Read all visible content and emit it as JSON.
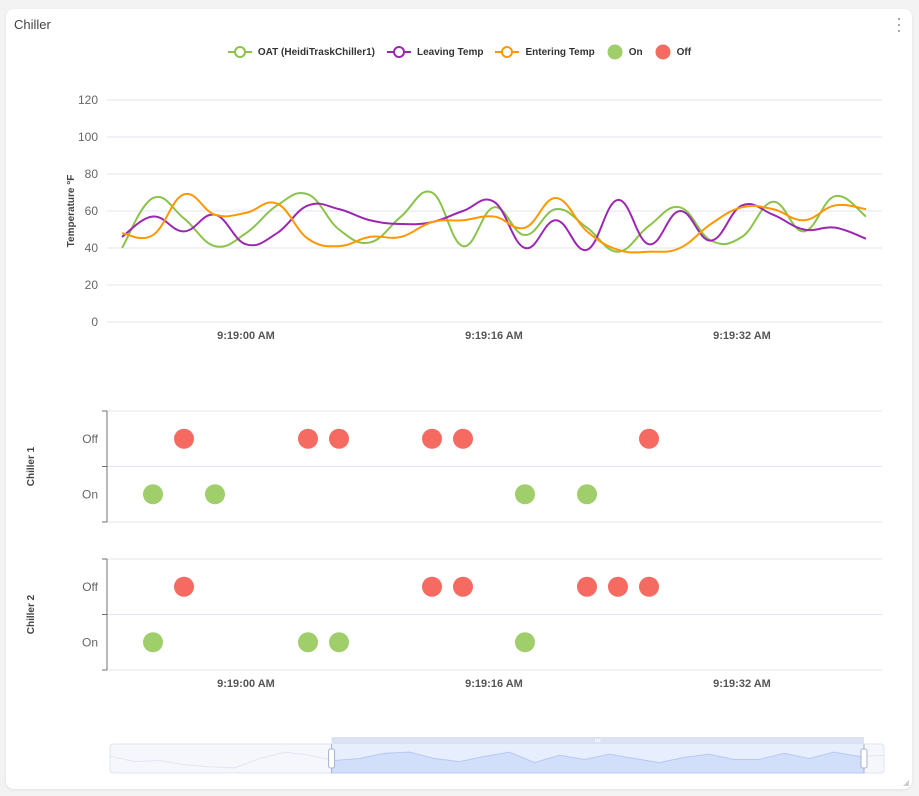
{
  "card": {
    "title": "Chiller",
    "menu_icon": "more-vertical-icon"
  },
  "colors": {
    "oat": "#8bc34a",
    "leaving": "#9c27b0",
    "entering": "#ff9800",
    "on": "#a0ce6b",
    "off": "#f56b61",
    "grid": "#e3e6f0"
  },
  "legend": [
    {
      "label": "OAT (HeidiTraskChiller1)",
      "type": "line",
      "color_key": "oat"
    },
    {
      "label": "Leaving Temp",
      "type": "line",
      "color_key": "leaving"
    },
    {
      "label": "Entering Temp",
      "type": "line",
      "color_key": "entering"
    },
    {
      "label": "On",
      "type": "dot",
      "color_key": "on"
    },
    {
      "label": "Off",
      "type": "dot",
      "color_key": "off"
    }
  ],
  "chart_data": [
    {
      "type": "line",
      "title": "",
      "xlabel": "",
      "ylabel": "Temperature °F",
      "ylim": [
        0,
        120
      ],
      "yticks": [
        0,
        20,
        40,
        60,
        80,
        100,
        120
      ],
      "x_unit": "seconds relative to 9:19:00 AM",
      "x": [
        -8,
        -6,
        -4,
        -2,
        0,
        2,
        4,
        6,
        8,
        10,
        12,
        14,
        16,
        18,
        20,
        22,
        24,
        26,
        28,
        30,
        32,
        34,
        36,
        38,
        40
      ],
      "xlim": [
        -8,
        40
      ],
      "xticks": [
        {
          "value": 0,
          "label": "9:19:00 AM"
        },
        {
          "value": 16,
          "label": "9:19:16 AM"
        },
        {
          "value": 32,
          "label": "9:19:32 AM"
        }
      ],
      "grid": true,
      "legend_position": "top",
      "series": [
        {
          "name": "OAT (HeidiTraskChiller1)",
          "color_key": "oat",
          "values": [
            40,
            67,
            56,
            41,
            48,
            63,
            69,
            50,
            43,
            57,
            70,
            41,
            62,
            47,
            61,
            51,
            38,
            52,
            62,
            44,
            46,
            65,
            49,
            68,
            57
          ]
        },
        {
          "name": "Leaving Temp",
          "color_key": "leaving",
          "values": [
            46,
            57,
            49,
            58,
            42,
            48,
            63,
            61,
            55,
            53,
            54,
            60,
            65,
            40,
            55,
            39,
            66,
            42,
            60,
            44,
            63,
            58,
            50,
            51,
            45
          ]
        },
        {
          "name": "Entering Temp",
          "color_key": "entering",
          "values": [
            48,
            47,
            69,
            58,
            59,
            64,
            45,
            41,
            46,
            46,
            54,
            55,
            57,
            51,
            67,
            49,
            39,
            38,
            40,
            53,
            62,
            61,
            55,
            63,
            61
          ]
        }
      ]
    },
    {
      "type": "scatter",
      "title": "",
      "ylabel": "Chiller 1",
      "categories": [
        "On",
        "Off"
      ],
      "x_unit": "seconds relative to 9:19:00 AM",
      "xlim": [
        -8,
        40
      ],
      "grid": true,
      "points": [
        {
          "x": -6,
          "state": "On"
        },
        {
          "x": -4,
          "state": "Off"
        },
        {
          "x": -2,
          "state": "On"
        },
        {
          "x": 4,
          "state": "Off"
        },
        {
          "x": 6,
          "state": "Off"
        },
        {
          "x": 12,
          "state": "Off"
        },
        {
          "x": 14,
          "state": "Off"
        },
        {
          "x": 18,
          "state": "On"
        },
        {
          "x": 22,
          "state": "On"
        },
        {
          "x": 26,
          "state": "Off"
        }
      ]
    },
    {
      "type": "scatter",
      "title": "",
      "ylabel": "Chiller 2",
      "categories": [
        "On",
        "Off"
      ],
      "x_unit": "seconds relative to 9:19:00 AM",
      "xlim": [
        -8,
        40
      ],
      "xticks": [
        {
          "value": 0,
          "label": "9:19:00 AM"
        },
        {
          "value": 16,
          "label": "9:19:16 AM"
        },
        {
          "value": 32,
          "label": "9:19:32 AM"
        }
      ],
      "grid": true,
      "points": [
        {
          "x": -6,
          "state": "On"
        },
        {
          "x": -4,
          "state": "Off"
        },
        {
          "x": 4,
          "state": "On"
        },
        {
          "x": 6,
          "state": "On"
        },
        {
          "x": 12,
          "state": "Off"
        },
        {
          "x": 14,
          "state": "Off"
        },
        {
          "x": 18,
          "state": "On"
        },
        {
          "x": 22,
          "state": "Off"
        },
        {
          "x": 24,
          "state": "Off"
        },
        {
          "x": 26,
          "state": "Off"
        }
      ]
    }
  ],
  "data_zoom": {
    "start_percent": 17,
    "end_percent": 95,
    "preview_values": [
      52,
      47,
      48,
      44,
      42,
      41,
      50,
      56,
      53,
      48,
      50,
      55,
      56,
      50,
      47,
      52,
      56,
      46,
      53,
      49,
      54,
      50,
      46,
      51,
      54,
      49,
      49,
      55,
      50,
      56,
      52,
      53
    ]
  }
}
